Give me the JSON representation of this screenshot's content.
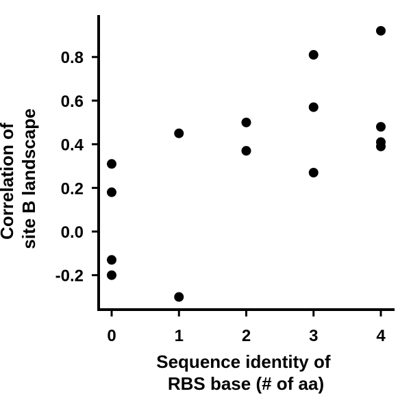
{
  "chart_data": {
    "type": "scatter",
    "title": "",
    "xlabel": [
      "Sequence identity of",
      "RBS base (# of aa)"
    ],
    "ylabel": [
      "Correlation of",
      "site B landscape"
    ],
    "xlim": [
      -0.2,
      4.2
    ],
    "ylim": [
      -0.35,
      0.98
    ],
    "xticks": [
      0,
      1,
      2,
      3,
      4
    ],
    "yticks": [
      -0.2,
      0.0,
      0.2,
      0.4,
      0.6,
      0.8
    ],
    "ytick_labels": [
      "-0.2",
      "0.0",
      "0.2",
      "0.4",
      "0.6",
      "0.8"
    ],
    "grid": false,
    "points": [
      {
        "x": 0,
        "y": 0.31
      },
      {
        "x": 0,
        "y": 0.18
      },
      {
        "x": 0,
        "y": -0.13
      },
      {
        "x": 0,
        "y": -0.2
      },
      {
        "x": 1,
        "y": 0.45
      },
      {
        "x": 1,
        "y": -0.3
      },
      {
        "x": 2,
        "y": 0.5
      },
      {
        "x": 2,
        "y": 0.37
      },
      {
        "x": 3,
        "y": 0.81
      },
      {
        "x": 3,
        "y": 0.57
      },
      {
        "x": 3,
        "y": 0.27
      },
      {
        "x": 4,
        "y": 0.92
      },
      {
        "x": 4,
        "y": 0.48
      },
      {
        "x": 4,
        "y": 0.41
      },
      {
        "x": 4,
        "y": 0.39
      }
    ]
  }
}
